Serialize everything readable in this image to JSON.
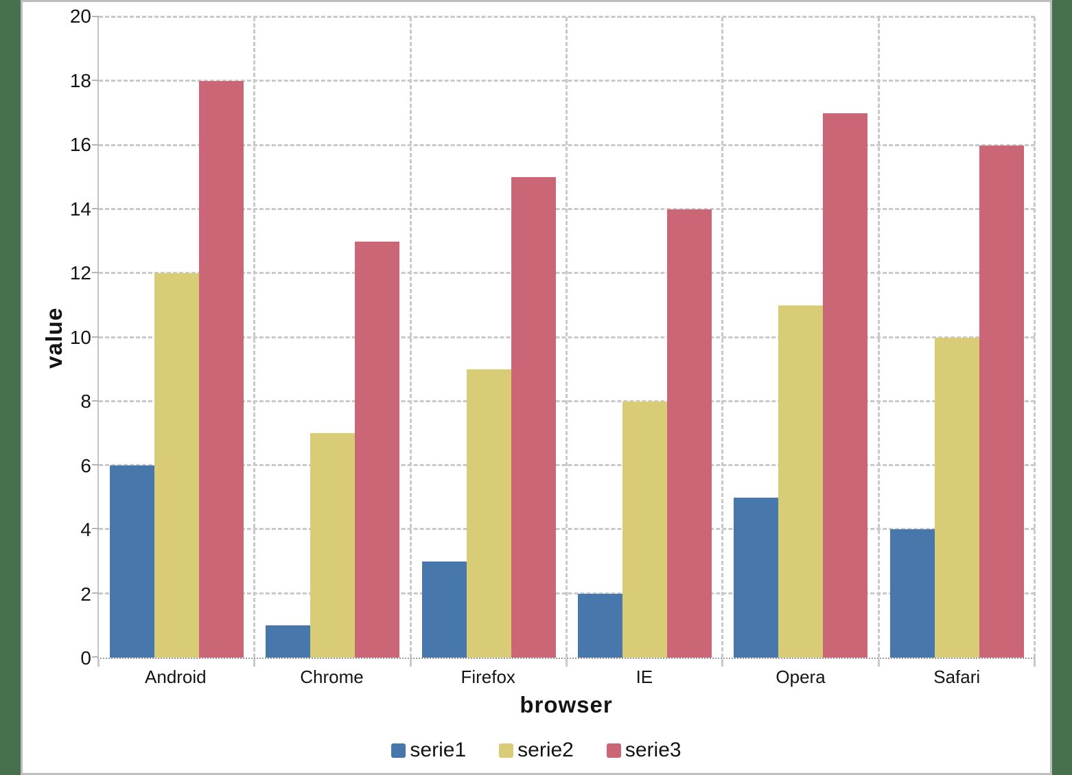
{
  "page": {
    "background_color": "#47714d",
    "card_border_color": "#bdbdbd",
    "card_background": "#ffffff"
  },
  "chart_data": {
    "type": "bar",
    "title": "",
    "xlabel": "browser",
    "ylabel": "value",
    "categories": [
      "Android",
      "Chrome",
      "Firefox",
      "IE",
      "Opera",
      "Safari"
    ],
    "series": [
      {
        "name": "serie1",
        "color": "#4878ab",
        "values": [
          6,
          1,
          3,
          2,
          5,
          4
        ]
      },
      {
        "name": "serie2",
        "color": "#d9cc77",
        "values": [
          12,
          7,
          9,
          8,
          11,
          10
        ]
      },
      {
        "name": "serie3",
        "color": "#cb6676",
        "values": [
          18,
          13,
          15,
          14,
          17,
          16
        ]
      }
    ],
    "ylim": [
      0,
      20
    ],
    "yticks": [
      0,
      2,
      4,
      6,
      8,
      10,
      12,
      14,
      16,
      18,
      20
    ],
    "grid": "dashed",
    "grid_color": "#c9c9c9",
    "legend_position": "bottom"
  }
}
